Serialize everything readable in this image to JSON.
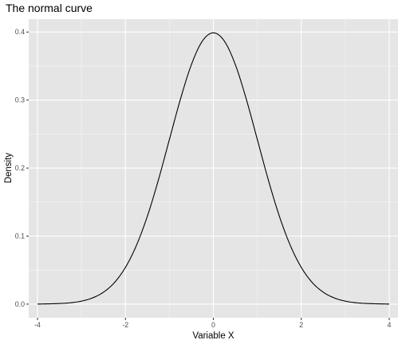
{
  "chart_data": {
    "type": "line",
    "title": "The normal curve",
    "xlabel": "Variable X",
    "ylabel": "Density",
    "xlim": [
      -4.2,
      4.2
    ],
    "ylim": [
      -0.02,
      0.419
    ],
    "x_ticks": [
      -4,
      -2,
      0,
      2,
      4
    ],
    "x_tick_labels": [
      "-4",
      "-2",
      "0",
      "2",
      "4"
    ],
    "y_ticks": [
      0.0,
      0.1,
      0.2,
      0.3,
      0.4
    ],
    "y_tick_labels": [
      "0.0",
      "0.1",
      "0.2",
      "0.3",
      "0.4"
    ],
    "grid": true,
    "legend": "none",
    "series": [
      {
        "x": [
          -4.0,
          -3.75,
          -3.5,
          -3.25,
          -3.0,
          -2.75,
          -2.5,
          -2.25,
          -2.0,
          -1.75,
          -1.5,
          -1.25,
          -1.0,
          -0.75,
          -0.5,
          -0.25,
          0.0,
          0.25,
          0.5,
          0.75,
          1.0,
          1.25,
          1.5,
          1.75,
          2.0,
          2.25,
          2.5,
          2.75,
          3.0,
          3.25,
          3.5,
          3.75,
          4.0
        ],
        "y": [
          0.0001,
          0.0004,
          0.0009,
          0.002,
          0.0044,
          0.0091,
          0.0175,
          0.0317,
          0.054,
          0.0863,
          0.1295,
          0.1826,
          0.242,
          0.3011,
          0.3521,
          0.3867,
          0.3989,
          0.3867,
          0.3521,
          0.3011,
          0.242,
          0.1826,
          0.1295,
          0.0863,
          0.054,
          0.0317,
          0.0175,
          0.0091,
          0.0044,
          0.002,
          0.0009,
          0.0004,
          0.0001
        ]
      }
    ]
  },
  "colors": {
    "panel_background": "#e5e5e5",
    "grid_major": "#ffffff",
    "line": "#000000",
    "tick_text": "#4d4d4d"
  }
}
